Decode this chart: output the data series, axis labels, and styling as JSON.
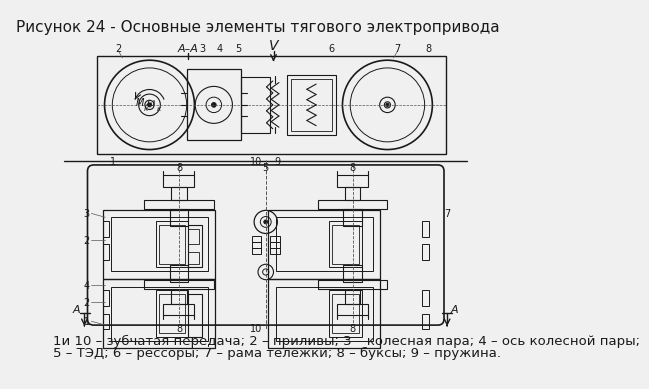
{
  "title": "Рисунок 24 - Основные элементы тягового электропривода",
  "caption_line1": "1и 10 – зубчатая передача; 2 – приливы; 3 – колесная пара; 4 – ось колесной пары;",
  "caption_line2": "5 – ТЭД; 6 – рессоры; 7 – рама тележки; 8 – буксы; 9 – пружина.",
  "line_color": "#1a1a1a",
  "bg_color": "#f0f0f0",
  "title_fontsize": 11,
  "caption_fontsize": 9.5,
  "dash_color": "#555555"
}
